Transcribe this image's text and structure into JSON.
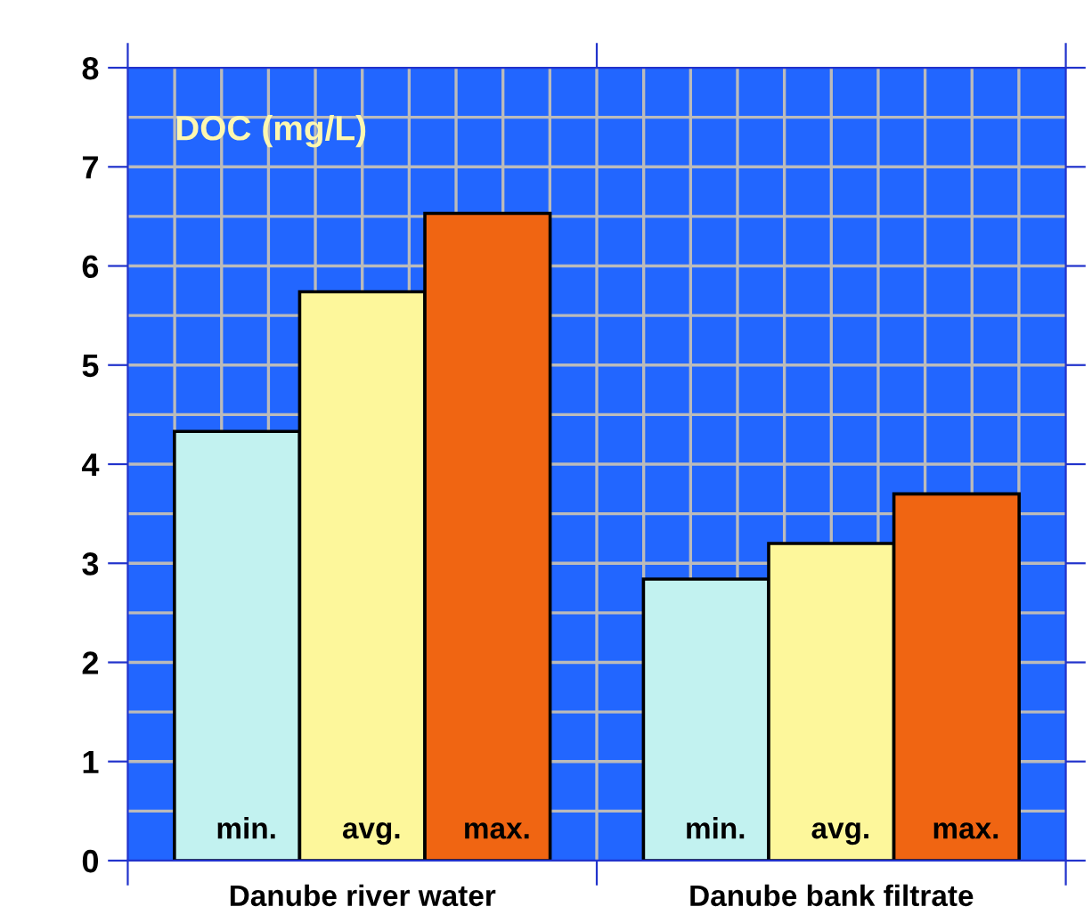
{
  "chart_data": {
    "type": "bar",
    "title": "DOC (mg/L)",
    "categories": [
      "Danube river water",
      "Danube bank filtrate"
    ],
    "series": [
      {
        "name": "min.",
        "color": "#c2f2f0",
        "values": [
          4.33,
          2.84
        ]
      },
      {
        "name": "avg.",
        "color": "#fdf79b",
        "values": [
          5.74,
          3.2
        ]
      },
      {
        "name": "max.",
        "color": "#f06512",
        "values": [
          6.53,
          3.7
        ]
      }
    ],
    "ylim": [
      0,
      8
    ],
    "yticks": [
      0,
      1,
      2,
      3,
      4,
      5,
      6,
      7,
      8
    ],
    "grid": true,
    "legend": false
  }
}
